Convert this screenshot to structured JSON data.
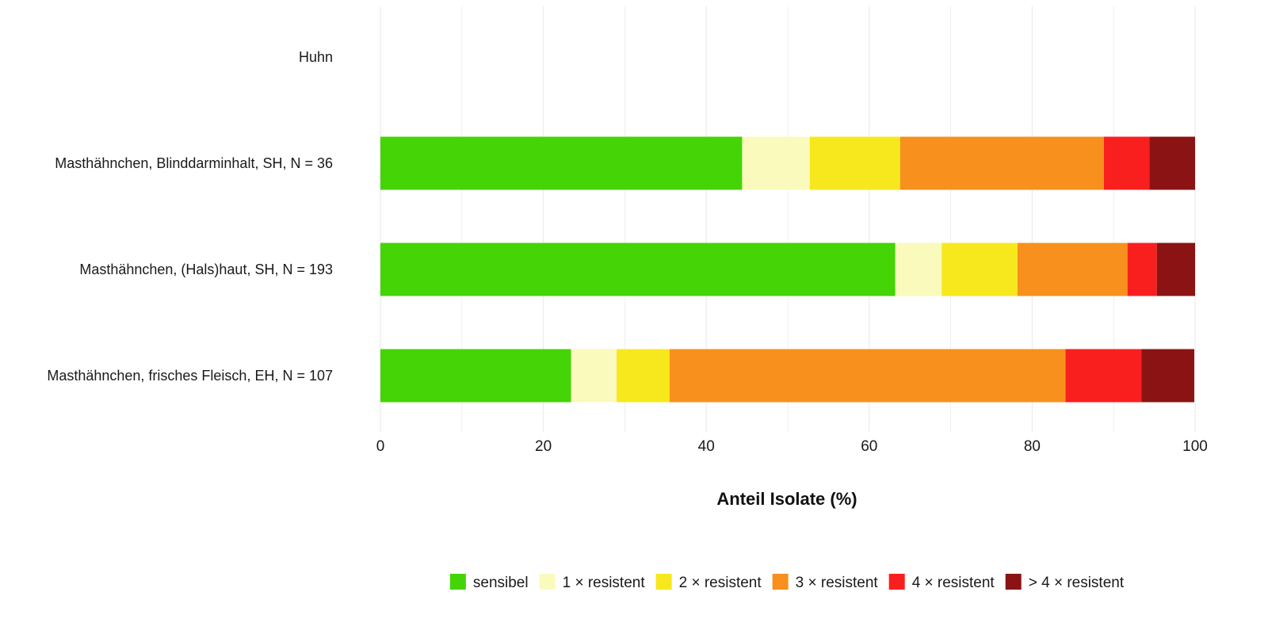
{
  "chart_data": {
    "type": "bar",
    "orientation": "horizontal",
    "stacked": true,
    "xlabel": "Anteil Isolate (%)",
    "xlim": [
      0,
      100
    ],
    "xticks": [
      0,
      20,
      40,
      60,
      80,
      100
    ],
    "grid": true,
    "legend_position": "bottom",
    "categories": [
      "Huhn",
      "Masthähnchen, Blinddarminhalt, SH, N = 36",
      "Masthähnchen, (Hals)haut, SH, N = 193",
      "Masthähnchen, frisches Fleisch, EH, N = 107"
    ],
    "series": [
      {
        "name": "sensibel",
        "color": "#45d406",
        "values": [
          null,
          44.4,
          63.2,
          23.4
        ]
      },
      {
        "name": "1 × resistent",
        "color": "#fafabd",
        "values": [
          null,
          8.3,
          5.7,
          5.6
        ]
      },
      {
        "name": "2 × resistent",
        "color": "#f7e81d",
        "values": [
          null,
          11.1,
          9.3,
          6.5
        ]
      },
      {
        "name": "3 × resistent",
        "color": "#f7901d",
        "values": [
          null,
          25.0,
          13.5,
          48.6
        ]
      },
      {
        "name": "4 × resistent",
        "color": "#fa1f1f",
        "values": [
          null,
          5.6,
          3.6,
          9.3
        ]
      },
      {
        "name": "> 4 × resistent",
        "color": "#8b1313",
        "values": [
          null,
          5.6,
          4.7,
          6.5
        ]
      }
    ]
  }
}
